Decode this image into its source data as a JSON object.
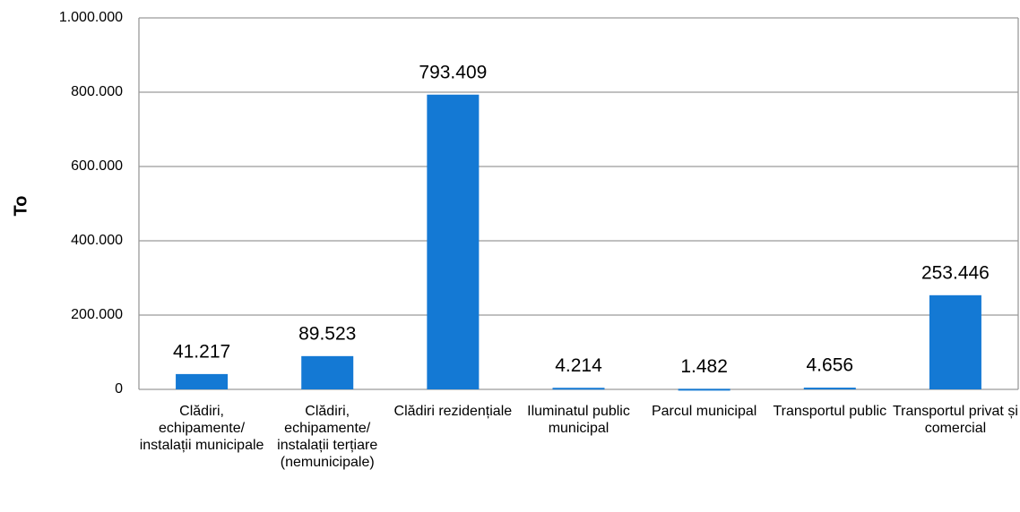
{
  "chart_data": {
    "type": "bar",
    "y_label": "To",
    "categories": [
      "Clădiri, echipamente/ instalații municipale",
      "Clădiri, echipamente/ instalații terțiare (nemunicipale)",
      "Clădiri rezidențiale",
      "Iluminatul public municipal",
      "Parcul municipal",
      "Transportul public",
      "Transportul privat și comercial"
    ],
    "values": [
      41217,
      89523,
      793409,
      4214,
      1482,
      4656,
      253446
    ],
    "value_labels": [
      "41.217",
      "89.523",
      "793.409",
      "4.214",
      "1.482",
      "4.656",
      "253.446"
    ],
    "color": "#1479d4",
    "ylim": [
      0,
      1000000
    ],
    "yticks": [
      0,
      {
        "value": 200000,
        "label": "200.000"
      },
      {
        "value": 400000,
        "label": "400.000"
      },
      {
        "value": 600000,
        "label": "600.000"
      },
      {
        "value": 800000,
        "label": "800.000"
      },
      {
        "value": 1000000,
        "label": "1.000.000"
      }
    ],
    "grid": true
  }
}
